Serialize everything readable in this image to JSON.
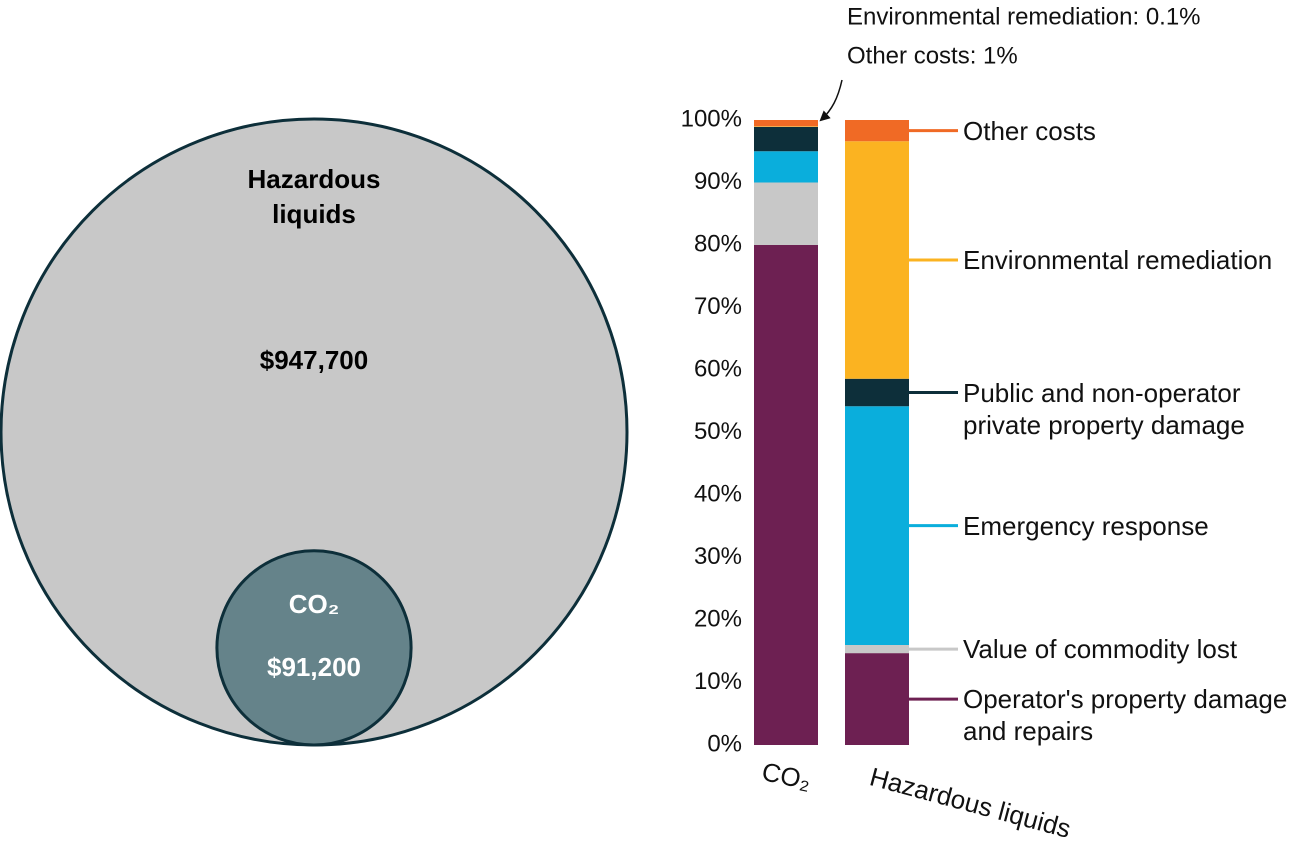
{
  "chart_data": [
    {
      "type": "bubble",
      "categories": [
        "Hazardous liquids",
        "CO₂"
      ],
      "values": [
        947700,
        91200
      ],
      "value_labels": [
        "$947,700",
        "$91,200"
      ],
      "colors": [
        "#c8c8c8",
        "#65838a"
      ],
      "text_colors": [
        "#000000",
        "#ffffff"
      ],
      "edge_color": "#0d2f3a"
    },
    {
      "type": "stacked_bar",
      "categories": [
        "CO₂",
        "Hazardous liquids"
      ],
      "series": [
        {
          "name": "Operator's property damage and repairs",
          "color": "#6d2052",
          "values": [
            80,
            14.7
          ]
        },
        {
          "name": "Value of commodity lost",
          "color": "#c8c8c8",
          "values": [
            10,
            1.3
          ]
        },
        {
          "name": "Emergency response",
          "color": "#0aaedc",
          "values": [
            5,
            38.2
          ]
        },
        {
          "name": "Public and non-operator private property damage",
          "color": "#0d2f3a",
          "values": [
            3.9,
            4.4
          ]
        },
        {
          "name": "Environmental remediation",
          "color": "#fbb321",
          "values": [
            0.1,
            38
          ]
        },
        {
          "name": "Other costs",
          "color": "#f06a25",
          "values": [
            1,
            3.4
          ]
        }
      ],
      "ylim": [
        0,
        100
      ],
      "yticks": [
        {
          "value": 0,
          "label": "0%"
        },
        {
          "value": 10,
          "label": "10%"
        },
        {
          "value": 20,
          "label": "20%"
        },
        {
          "value": 30,
          "label": "30%"
        },
        {
          "value": 40,
          "label": "40%"
        },
        {
          "value": 50,
          "label": "50%"
        },
        {
          "value": 60,
          "label": "60%"
        },
        {
          "value": 70,
          "label": "70%"
        },
        {
          "value": 80,
          "label": "80%"
        },
        {
          "value": 90,
          "label": "90%"
        },
        {
          "value": 100,
          "label": "100%"
        }
      ],
      "annotations": [
        "Environmental remediation: 0.1%",
        "Other costs: 1%"
      ]
    }
  ]
}
